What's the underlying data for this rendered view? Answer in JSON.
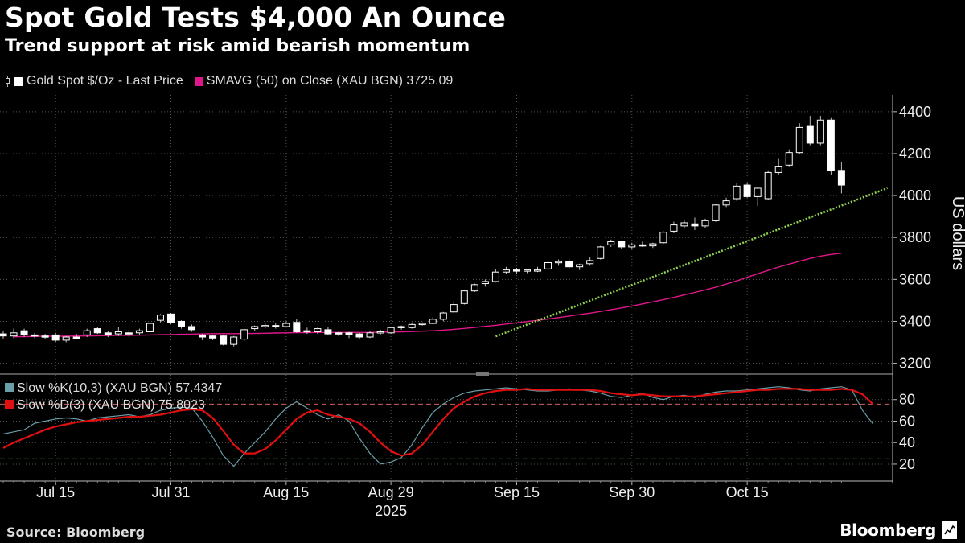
{
  "title": "Spot Gold Tests $4,000 An Ounce",
  "subtitle": "Trend support at risk amid bearish momentum",
  "legend": [
    {
      "label": "Gold Spot $/Oz - Last Price",
      "icon": "candlestick-icon"
    },
    {
      "label": "SMAVG (50)  on Close (XAU BGN) 3725.09",
      "color": "#e0178a"
    }
  ],
  "source": "Source: Bloomberg",
  "brand": "Bloomberg",
  "chart_data": [
    {
      "type": "candlestick",
      "ylabel": "US dollars",
      "ylim": [
        3160,
        4480
      ],
      "yticks": [
        3200,
        3400,
        3600,
        3800,
        4000,
        4200,
        4400
      ],
      "x_tick_labels": [
        "Jul 15",
        "Jul 31",
        "Aug 15",
        "Aug 29",
        "Sep 15",
        "Sep 30",
        "Oct 15"
      ],
      "x_year_label": "2025",
      "grid": true,
      "colors": {
        "candle": "#ffffff",
        "sma": "#e0178a",
        "trendline": "#8fd14f"
      },
      "series": [
        {
          "name": "Gold Spot $/Oz - Last Price",
          "values": [
            {
              "o": 3340,
              "h": 3355,
              "l": 3315,
              "c": 3330
            },
            {
              "o": 3330,
              "h": 3365,
              "l": 3320,
              "c": 3345
            },
            {
              "o": 3355,
              "h": 3365,
              "l": 3325,
              "c": 3335
            },
            {
              "o": 3335,
              "h": 3345,
              "l": 3320,
              "c": 3330
            },
            {
              "o": 3330,
              "h": 3340,
              "l": 3315,
              "c": 3325
            },
            {
              "o": 3335,
              "h": 3345,
              "l": 3300,
              "c": 3310
            },
            {
              "o": 3310,
              "h": 3330,
              "l": 3300,
              "c": 3325
            },
            {
              "o": 3325,
              "h": 3340,
              "l": 3315,
              "c": 3320
            },
            {
              "o": 3335,
              "h": 3365,
              "l": 3325,
              "c": 3355
            },
            {
              "o": 3365,
              "h": 3375,
              "l": 3340,
              "c": 3345
            },
            {
              "o": 3345,
              "h": 3355,
              "l": 3325,
              "c": 3335
            },
            {
              "o": 3340,
              "h": 3375,
              "l": 3330,
              "c": 3350
            },
            {
              "o": 3345,
              "h": 3360,
              "l": 3325,
              "c": 3340
            },
            {
              "o": 3345,
              "h": 3365,
              "l": 3335,
              "c": 3355
            },
            {
              "o": 3350,
              "h": 3400,
              "l": 3345,
              "c": 3390
            },
            {
              "o": 3405,
              "h": 3435,
              "l": 3395,
              "c": 3430
            },
            {
              "o": 3435,
              "h": 3440,
              "l": 3385,
              "c": 3395
            },
            {
              "o": 3400,
              "h": 3405,
              "l": 3365,
              "c": 3375
            },
            {
              "o": 3375,
              "h": 3385,
              "l": 3350,
              "c": 3360
            },
            {
              "o": 3335,
              "h": 3340,
              "l": 3310,
              "c": 3325
            },
            {
              "o": 3330,
              "h": 3335,
              "l": 3310,
              "c": 3320
            },
            {
              "o": 3330,
              "h": 3335,
              "l": 3285,
              "c": 3290
            },
            {
              "o": 3290,
              "h": 3330,
              "l": 3280,
              "c": 3325
            },
            {
              "o": 3315,
              "h": 3365,
              "l": 3305,
              "c": 3360
            },
            {
              "o": 3365,
              "h": 3380,
              "l": 3355,
              "c": 3375
            },
            {
              "o": 3375,
              "h": 3390,
              "l": 3365,
              "c": 3380
            },
            {
              "o": 3380,
              "h": 3390,
              "l": 3365,
              "c": 3375
            },
            {
              "o": 3375,
              "h": 3400,
              "l": 3370,
              "c": 3390
            },
            {
              "o": 3395,
              "h": 3410,
              "l": 3345,
              "c": 3350
            },
            {
              "o": 3355,
              "h": 3370,
              "l": 3340,
              "c": 3350
            },
            {
              "o": 3350,
              "h": 3370,
              "l": 3340,
              "c": 3365
            },
            {
              "o": 3360,
              "h": 3375,
              "l": 3335,
              "c": 3340
            },
            {
              "o": 3345,
              "h": 3350,
              "l": 3330,
              "c": 3340
            },
            {
              "o": 3345,
              "h": 3350,
              "l": 3320,
              "c": 3335
            },
            {
              "o": 3340,
              "h": 3345,
              "l": 3315,
              "c": 3325
            },
            {
              "o": 3325,
              "h": 3355,
              "l": 3320,
              "c": 3345
            },
            {
              "o": 3345,
              "h": 3360,
              "l": 3335,
              "c": 3350
            },
            {
              "o": 3345,
              "h": 3375,
              "l": 3340,
              "c": 3370
            },
            {
              "o": 3370,
              "h": 3380,
              "l": 3360,
              "c": 3375
            },
            {
              "o": 3370,
              "h": 3395,
              "l": 3365,
              "c": 3385
            },
            {
              "o": 3385,
              "h": 3395,
              "l": 3380,
              "c": 3390
            },
            {
              "o": 3390,
              "h": 3420,
              "l": 3385,
              "c": 3410
            },
            {
              "o": 3410,
              "h": 3445,
              "l": 3400,
              "c": 3440
            },
            {
              "o": 3445,
              "h": 3490,
              "l": 3440,
              "c": 3480
            },
            {
              "o": 3485,
              "h": 3550,
              "l": 3480,
              "c": 3545
            },
            {
              "o": 3545,
              "h": 3580,
              "l": 3540,
              "c": 3575
            },
            {
              "o": 3580,
              "h": 3600,
              "l": 3565,
              "c": 3590
            },
            {
              "o": 3590,
              "h": 3650,
              "l": 3585,
              "c": 3635
            },
            {
              "o": 3635,
              "h": 3660,
              "l": 3625,
              "c": 3645
            },
            {
              "o": 3645,
              "h": 3655,
              "l": 3625,
              "c": 3640
            },
            {
              "o": 3640,
              "h": 3650,
              "l": 3630,
              "c": 3645
            },
            {
              "o": 3645,
              "h": 3660,
              "l": 3635,
              "c": 3645
            },
            {
              "o": 3650,
              "h": 3690,
              "l": 3645,
              "c": 3680
            },
            {
              "o": 3680,
              "h": 3695,
              "l": 3665,
              "c": 3685
            },
            {
              "o": 3685,
              "h": 3700,
              "l": 3650,
              "c": 3660
            },
            {
              "o": 3660,
              "h": 3675,
              "l": 3645,
              "c": 3670
            },
            {
              "o": 3675,
              "h": 3705,
              "l": 3665,
              "c": 3690
            },
            {
              "o": 3700,
              "h": 3760,
              "l": 3695,
              "c": 3755
            },
            {
              "o": 3765,
              "h": 3790,
              "l": 3755,
              "c": 3780
            },
            {
              "o": 3780,
              "h": 3785,
              "l": 3745,
              "c": 3755
            },
            {
              "o": 3755,
              "h": 3775,
              "l": 3745,
              "c": 3765
            },
            {
              "o": 3765,
              "h": 3780,
              "l": 3755,
              "c": 3760
            },
            {
              "o": 3760,
              "h": 3775,
              "l": 3750,
              "c": 3770
            },
            {
              "o": 3775,
              "h": 3830,
              "l": 3770,
              "c": 3825
            },
            {
              "o": 3830,
              "h": 3875,
              "l": 3820,
              "c": 3860
            },
            {
              "o": 3855,
              "h": 3880,
              "l": 3845,
              "c": 3870
            },
            {
              "o": 3865,
              "h": 3895,
              "l": 3835,
              "c": 3855
            },
            {
              "o": 3855,
              "h": 3890,
              "l": 3845,
              "c": 3880
            },
            {
              "o": 3880,
              "h": 3960,
              "l": 3875,
              "c": 3955
            },
            {
              "o": 3955,
              "h": 3990,
              "l": 3945,
              "c": 3975
            },
            {
              "o": 3985,
              "h": 4060,
              "l": 3975,
              "c": 4045
            },
            {
              "o": 4050,
              "h": 4060,
              "l": 3990,
              "c": 3995
            },
            {
              "o": 3995,
              "h": 4040,
              "l": 3950,
              "c": 4035
            },
            {
              "o": 3985,
              "h": 4120,
              "l": 3980,
              "c": 4110
            },
            {
              "o": 4110,
              "h": 4175,
              "l": 4100,
              "c": 4140
            },
            {
              "o": 4145,
              "h": 4220,
              "l": 4140,
              "c": 4205
            },
            {
              "o": 4205,
              "h": 4345,
              "l": 4200,
              "c": 4325
            },
            {
              "o": 4330,
              "h": 4380,
              "l": 4240,
              "c": 4250
            },
            {
              "o": 4250,
              "h": 4380,
              "l": 4240,
              "c": 4360
            },
            {
              "o": 4360,
              "h": 4370,
              "l": 4100,
              "c": 4120
            },
            {
              "o": 4120,
              "h": 4160,
              "l": 4010,
              "c": 4050
            }
          ]
        },
        {
          "name": "SMAVG (50)  on Close (XAU BGN) 3725.09",
          "values": [
            3326,
            3327,
            3328,
            3329,
            3329,
            3329,
            3330,
            3330,
            3331,
            3332,
            3333,
            3333,
            3334,
            3335,
            3336,
            3337,
            3338,
            3339,
            3340,
            3341,
            3341,
            3341,
            3342,
            3342,
            3343,
            3344,
            3345,
            3346,
            3346,
            3347,
            3347,
            3347,
            3347,
            3347,
            3347,
            3348,
            3349,
            3350,
            3351,
            3353,
            3355,
            3358,
            3362,
            3366,
            3371,
            3376,
            3381,
            3387,
            3393,
            3399,
            3405,
            3411,
            3418,
            3425,
            3432,
            3439,
            3447,
            3455,
            3464,
            3473,
            3483,
            3493,
            3503,
            3514,
            3526,
            3538,
            3550,
            3563,
            3578,
            3593,
            3610,
            3627,
            3643,
            3659,
            3673,
            3687,
            3700,
            3711,
            3719,
            3725.09
          ]
        },
        {
          "name": "trendline",
          "start": [
            47,
            3328
          ],
          "end": [
            83,
            4020
          ]
        }
      ]
    },
    {
      "type": "line",
      "ylim": [
        5,
        100
      ],
      "yticks": [
        20,
        40,
        60,
        80
      ],
      "reference_lines": [
        75.8,
        25
      ],
      "colors": {
        "k": "#6a9ea8",
        "d": "#e01010",
        "ref_upper": "#d06060",
        "ref_lower": "#2f7f2f"
      },
      "series": [
        {
          "name": "Slow %K(10,3) (XAU BGN)",
          "last": "57.4347",
          "values": [
            48,
            50,
            52,
            58,
            60,
            62,
            63,
            62,
            60,
            63,
            64,
            65,
            66,
            64,
            66,
            70,
            72,
            73,
            72,
            60,
            45,
            28,
            18,
            30,
            40,
            50,
            62,
            72,
            78,
            72,
            66,
            62,
            66,
            60,
            44,
            30,
            20,
            22,
            26,
            38,
            54,
            68,
            76,
            82,
            86,
            88,
            89,
            90,
            91,
            90,
            89,
            88,
            88,
            89,
            90,
            89,
            88,
            86,
            83,
            82,
            84,
            86,
            82,
            80,
            83,
            84,
            82,
            85,
            87,
            88,
            88,
            89,
            90,
            91,
            92,
            91,
            89,
            88,
            90,
            91,
            92,
            89,
            70,
            57.4347
          ]
        },
        {
          "name": "Slow %D(3) (XAU BGN)",
          "last": "75.8023",
          "values": [
            35,
            40,
            44,
            48,
            52,
            55,
            57,
            59,
            60,
            61,
            62,
            63,
            64,
            64,
            65,
            66,
            68,
            70,
            71,
            70,
            63,
            51,
            38,
            30,
            30,
            34,
            42,
            52,
            62,
            68,
            70,
            66,
            64,
            62,
            58,
            50,
            40,
            32,
            28,
            30,
            38,
            50,
            62,
            72,
            78,
            83,
            86,
            88,
            89,
            89,
            90,
            89,
            89,
            89,
            89,
            89,
            89,
            88,
            86,
            85,
            84,
            85,
            84,
            83,
            83,
            83,
            83,
            84,
            85,
            86,
            87,
            88,
            89,
            89,
            90,
            90,
            90,
            89,
            89,
            89,
            90,
            89,
            85,
            75.8023
          ]
        }
      ]
    }
  ]
}
